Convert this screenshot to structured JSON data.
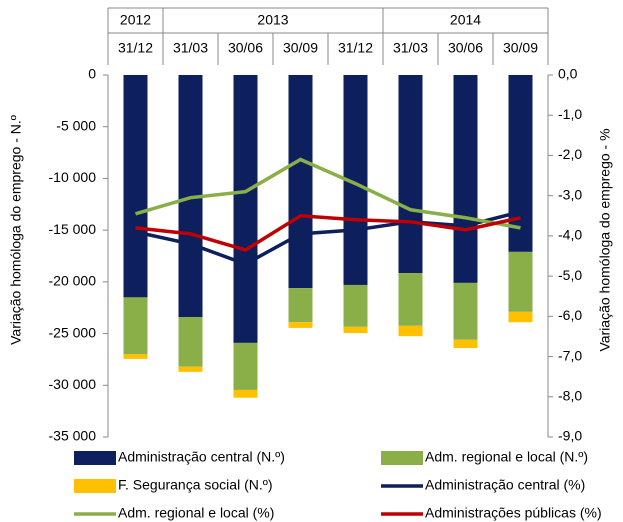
{
  "chart_data": {
    "type": "bar",
    "stacked": true,
    "groups": [
      {
        "name": "2012",
        "categories": [
          "31/12"
        ]
      },
      {
        "name": "2013",
        "categories": [
          "31/03",
          "30/06",
          "30/09",
          "31/12"
        ]
      },
      {
        "name": "2014",
        "categories": [
          "31/03",
          "30/06",
          "30/09"
        ]
      }
    ],
    "ylabel": "Variação homóloga do emprego - N.º",
    "y2label": "Variação homóloga do emprego - %",
    "ylim": [
      -35000,
      0
    ],
    "yticks": [
      0,
      {
        "value": -5000,
        "label": "-5 000"
      },
      {
        "value": -10000,
        "label": "-10 000"
      },
      {
        "value": -15000,
        "label": "-15 000"
      },
      {
        "value": -20000,
        "label": "-20 000"
      },
      {
        "value": -25000,
        "label": "-25 000"
      },
      {
        "value": -30000,
        "label": "-30 000"
      },
      {
        "value": -35000,
        "label": "-35 000"
      }
    ],
    "y2lim": [
      -9,
      0
    ],
    "y2ticks": [
      {
        "value": 0,
        "label": "0,0"
      },
      {
        "value": -1,
        "label": "-1,0"
      },
      {
        "value": -2,
        "label": "-2,0"
      },
      {
        "value": -3,
        "label": "-3,0"
      },
      {
        "value": -4,
        "label": "-4,0"
      },
      {
        "value": -5,
        "label": "-5,0"
      },
      {
        "value": -6,
        "label": "-6,0"
      },
      {
        "value": -7,
        "label": "-7,0"
      },
      {
        "value": -8,
        "label": "-8,0"
      },
      {
        "value": -9,
        "label": "-9,0"
      }
    ],
    "series": [
      {
        "name": "Administração central (N.º)",
        "type": "bar",
        "color": "#0d1f5c",
        "values": [
          -21500,
          -23400,
          -25900,
          -20600,
          -20300,
          -19150,
          -20100,
          -17100
        ]
      },
      {
        "name": "Adm. regional e local (N.º)",
        "type": "bar",
        "color": "#8aae48",
        "values": [
          -5500,
          -4800,
          -4550,
          -3300,
          -4050,
          -5100,
          -5500,
          -5800
        ]
      },
      {
        "name": "F. Segurança social  (N.º)",
        "type": "bar",
        "color": "#ffc000",
        "values": [
          -450,
          -500,
          -750,
          -550,
          -600,
          -1000,
          -800,
          -1000
        ]
      },
      {
        "name": "Administração central  (%)",
        "type": "line",
        "axis": "y2",
        "color": "#0d1f5c",
        "values": [
          -3.9,
          -4.2,
          -4.7,
          -3.95,
          -3.85,
          -3.65,
          -3.75,
          -3.4
        ]
      },
      {
        "name": "Adm. regional e local (%)",
        "type": "line",
        "axis": "y2",
        "color": "#8aae48",
        "values": [
          -3.45,
          -3.05,
          -2.9,
          -2.1,
          -2.7,
          -3.35,
          -3.55,
          -3.8
        ]
      },
      {
        "name": "Administrações públicas (%)",
        "type": "line",
        "axis": "y2",
        "color": "#c00000",
        "values": [
          -3.8,
          -3.95,
          -4.35,
          -3.5,
          -3.6,
          -3.65,
          -3.85,
          -3.55
        ]
      }
    ]
  }
}
